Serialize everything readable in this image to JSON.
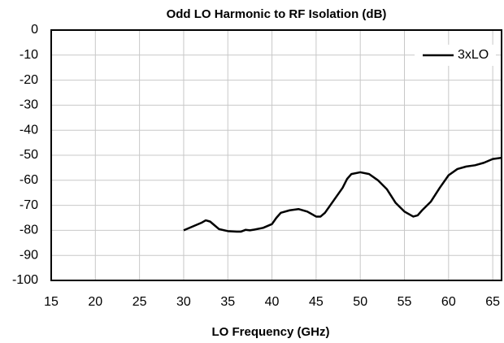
{
  "chart_data": {
    "type": "line",
    "title": "Odd LO Harmonic to RF Isolation (dB)",
    "x_label": "LO Frequency  (GHz)",
    "xlim": [
      15,
      66
    ],
    "xticks": [
      15,
      20,
      25,
      30,
      35,
      40,
      45,
      50,
      55,
      60,
      65
    ],
    "ylim": [
      -100,
      0
    ],
    "yticks": [
      0,
      -10,
      -20,
      -30,
      -40,
      -50,
      -60,
      -70,
      -80,
      -90,
      -100
    ],
    "grid": true,
    "legend": "upper right",
    "x": [
      30,
      31,
      32,
      32.5,
      33,
      33.5,
      34,
      35,
      36,
      36.5,
      37,
      37.5,
      38,
      39,
      40,
      40.5,
      41,
      42,
      43,
      44,
      45,
      45.5,
      46,
      47,
      48,
      48.5,
      49,
      50,
      51,
      52,
      53,
      54,
      55,
      56,
      56.5,
      57,
      58,
      59,
      60,
      61,
      62,
      63,
      64,
      65,
      66
    ],
    "series": [
      {
        "name": "3xLO",
        "color": "#000000",
        "values": [
          -80,
          -78.5,
          -77,
          -76,
          -76.5,
          -78,
          -79.5,
          -80.3,
          -80.5,
          -80.5,
          -79.8,
          -80,
          -79.7,
          -79,
          -77.5,
          -75,
          -73,
          -72,
          -71.5,
          -72.5,
          -74.5,
          -74.5,
          -73,
          -68,
          -63,
          -59.5,
          -57.5,
          -56.8,
          -57.5,
          -60,
          -63.5,
          -69,
          -72.5,
          -74.5,
          -74,
          -72,
          -68.5,
          -63,
          -58,
          -55.5,
          -54.5,
          -54,
          -53,
          -51.5,
          -51
        ]
      }
    ]
  }
}
